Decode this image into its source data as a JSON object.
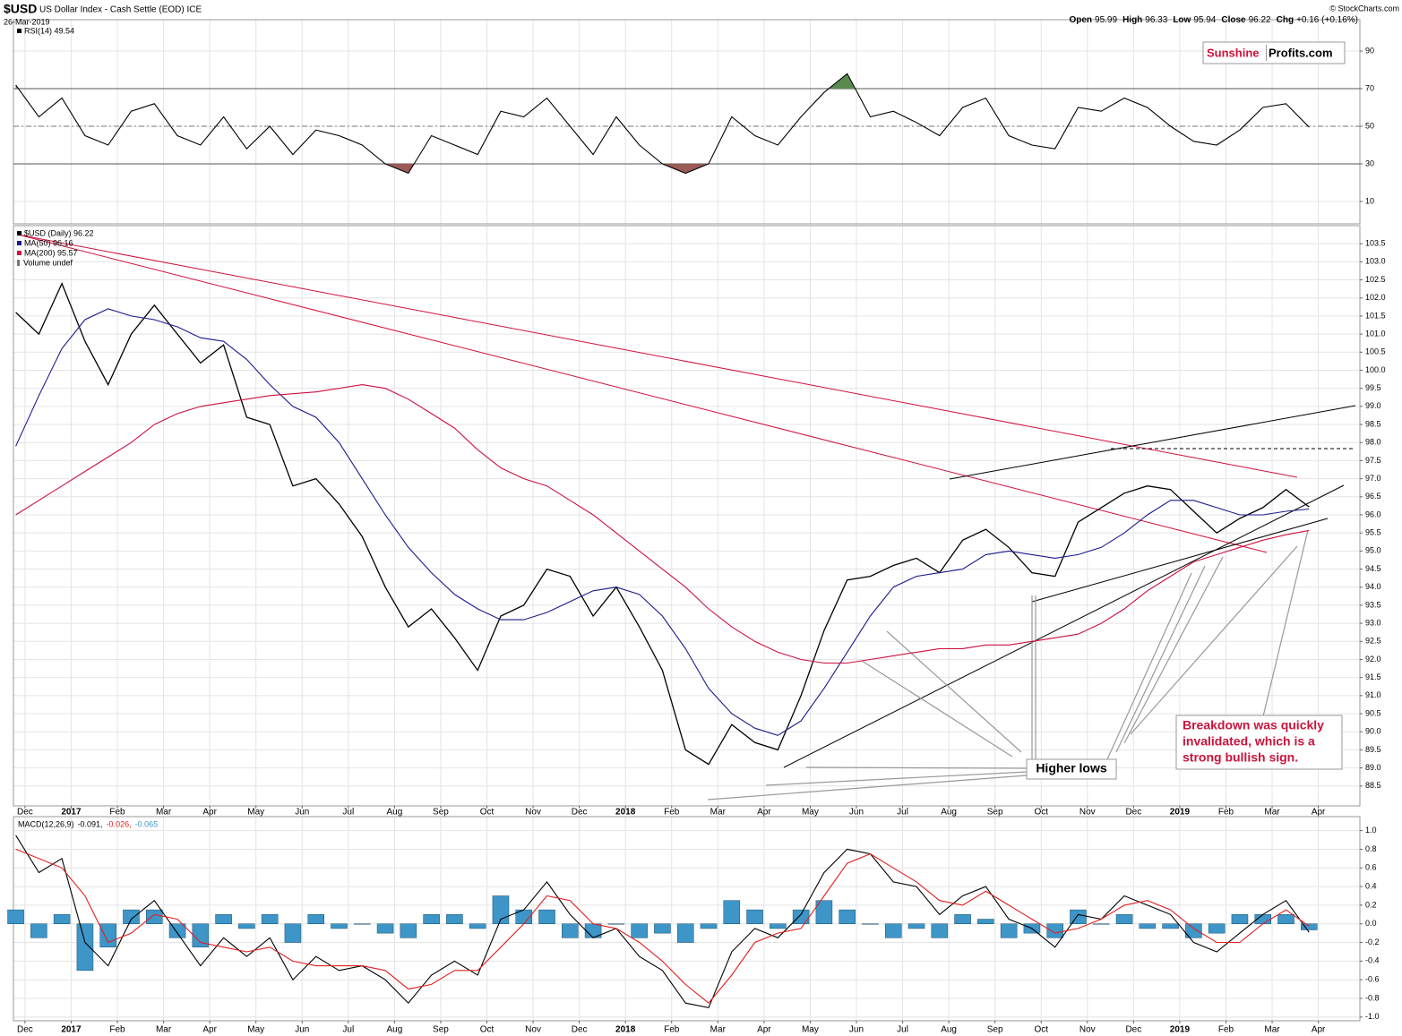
{
  "header": {
    "symbol": "$USD",
    "name": "US Dollar Index - Cash Settle (EOD) ICE",
    "date": "26-Mar-2019",
    "quote": [
      {
        "label": "Open",
        "value": "95.99"
      },
      {
        "label": "High",
        "value": "96.33"
      },
      {
        "label": "Low",
        "value": "95.94"
      },
      {
        "label": "Close",
        "value": "96.22"
      },
      {
        "label": "Chg",
        "value": "+0.16 (+0.16%)"
      }
    ],
    "credit": "© StockCharts.com",
    "logo": [
      "Sunshine",
      "Profits.com"
    ]
  },
  "annotations": {
    "higher_lows": "Higher lows",
    "breakdown": [
      "Breakdown was quickly",
      "invalidated, which is a",
      "strong bullish sign."
    ],
    "volume": "Volume undef"
  },
  "chart_data": [
    {
      "type": "line",
      "xlim": [
        -0.25,
        28.9
      ],
      "ylim": [
        -1.9,
        106.7
      ],
      "yticks": [
        10,
        30,
        50,
        70,
        90
      ],
      "levels": [
        30,
        70
      ],
      "midline": 50,
      "overbought_color": "#5a8a50",
      "oversold_color": "#9a5a55",
      "grid": true,
      "x": [
        -0.2,
        0.3,
        0.8,
        1.3,
        1.8,
        2.3,
        2.8,
        3.3,
        3.8,
        4.3,
        4.8,
        5.3,
        5.8,
        6.3,
        6.8,
        7.3,
        7.8,
        8.3,
        8.8,
        9.3,
        9.8,
        10.3,
        10.8,
        11.3,
        11.8,
        12.3,
        12.8,
        13.3,
        13.8,
        14.3,
        14.8,
        15.3,
        15.8,
        16.3,
        16.8,
        17.3,
        17.8,
        18.3,
        18.8,
        19.3,
        19.8,
        20.3,
        20.8,
        21.3,
        21.8,
        22.3,
        22.8,
        23.3,
        23.8,
        24.3,
        24.8,
        25.3,
        25.8,
        26.3,
        26.8,
        27.3,
        27.8
      ],
      "series": [
        {
          "name": "RSI(14) 49.54",
          "color": "#000000",
          "values": [
            72,
            55,
            65,
            45,
            40,
            58,
            62,
            45,
            40,
            55,
            38,
            50,
            35,
            48,
            45,
            40,
            30,
            25,
            45,
            40,
            35,
            58,
            55,
            65,
            50,
            35,
            55,
            40,
            30,
            25,
            30,
            55,
            45,
            40,
            55,
            68,
            78,
            55,
            58,
            52,
            45,
            60,
            65,
            45,
            40,
            38,
            60,
            58,
            65,
            60,
            50,
            42,
            40,
            48,
            60,
            62,
            49.54
          ]
        }
      ]
    },
    {
      "type": "line",
      "xlim": [
        -0.25,
        28.9
      ],
      "ylim": [
        87.95,
        104.0
      ],
      "yticks": [
        88.5,
        {
          "value": 89,
          "label": "89.0"
        },
        89.5,
        {
          "value": 90,
          "label": "90.0"
        },
        90.5,
        {
          "value": 91,
          "label": "91.0"
        },
        91.5,
        {
          "value": 92,
          "label": "92.0"
        },
        92.5,
        {
          "value": 93,
          "label": "93.0"
        },
        93.5,
        {
          "value": 94,
          "label": "94.0"
        },
        94.5,
        {
          "value": 95,
          "label": "95.0"
        },
        95.5,
        {
          "value": 96,
          "label": "96.0"
        },
        96.5,
        {
          "value": 97,
          "label": "97.0"
        },
        97.5,
        {
          "value": 98,
          "label": "98.0"
        },
        98.5,
        {
          "value": 99,
          "label": "99.0"
        },
        99.5,
        {
          "value": 100,
          "label": "100.0"
        },
        100.5,
        {
          "value": 101,
          "label": "101.0"
        },
        101.5,
        {
          "value": 102,
          "label": "102.0"
        },
        102.5,
        {
          "value": 103,
          "label": "103.0"
        },
        103.5
      ],
      "xticks": [
        {
          "value": 0,
          "label": "Dec"
        },
        {
          "value": 1,
          "label": "2017"
        },
        {
          "value": 2,
          "label": "Feb"
        },
        {
          "value": 3,
          "label": "Mar"
        },
        {
          "value": 4,
          "label": "Apr"
        },
        {
          "value": 5,
          "label": "May"
        },
        {
          "value": 6,
          "label": "Jun"
        },
        {
          "value": 7,
          "label": "Jul"
        },
        {
          "value": 8,
          "label": "Aug"
        },
        {
          "value": 9,
          "label": "Sep"
        },
        {
          "value": 10,
          "label": "Oct"
        },
        {
          "value": 11,
          "label": "Nov"
        },
        {
          "value": 12,
          "label": "Dec"
        },
        {
          "value": 13,
          "label": "2018"
        },
        {
          "value": 14,
          "label": "Feb"
        },
        {
          "value": 15,
          "label": "Mar"
        },
        {
          "value": 16,
          "label": "Apr"
        },
        {
          "value": 17,
          "label": "May"
        },
        {
          "value": 18,
          "label": "Jun"
        },
        {
          "value": 19,
          "label": "Jul"
        },
        {
          "value": 20,
          "label": "Aug"
        },
        {
          "value": 21,
          "label": "Sep"
        },
        {
          "value": 22,
          "label": "Oct"
        },
        {
          "value": 23,
          "label": "Nov"
        },
        {
          "value": 24,
          "label": "Dec"
        },
        {
          "value": 25,
          "label": "2019"
        },
        {
          "value": 26,
          "label": "Feb"
        },
        {
          "value": 27,
          "label": "Mar"
        },
        {
          "value": 28,
          "label": "Apr"
        }
      ],
      "grid": true,
      "x": [
        -0.2,
        0.3,
        0.8,
        1.3,
        1.8,
        2.3,
        2.8,
        3.3,
        3.8,
        4.3,
        4.8,
        5.3,
        5.8,
        6.3,
        6.8,
        7.3,
        7.8,
        8.3,
        8.8,
        9.3,
        9.8,
        10.3,
        10.8,
        11.3,
        11.8,
        12.3,
        12.8,
        13.3,
        13.8,
        14.3,
        14.8,
        15.3,
        15.8,
        16.3,
        16.8,
        17.3,
        17.8,
        18.3,
        18.8,
        19.3,
        19.8,
        20.3,
        20.8,
        21.3,
        21.8,
        22.3,
        22.8,
        23.3,
        23.8,
        24.3,
        24.8,
        25.3,
        25.8,
        26.3,
        26.8,
        27.3,
        27.8
      ],
      "series": [
        {
          "name": "$USD (Daily) 96.22",
          "color": "#000000",
          "values": [
            101.6,
            101.0,
            102.4,
            100.8,
            99.6,
            101.0,
            101.8,
            101.0,
            100.2,
            100.7,
            98.7,
            98.5,
            96.8,
            97.0,
            96.3,
            95.4,
            94.0,
            92.9,
            93.4,
            92.6,
            91.7,
            93.2,
            93.5,
            94.5,
            94.3,
            93.2,
            94.0,
            92.9,
            91.7,
            89.5,
            89.1,
            90.2,
            89.7,
            89.5,
            91.0,
            92.8,
            94.2,
            94.3,
            94.6,
            94.8,
            94.4,
            95.3,
            95.6,
            95.1,
            94.4,
            94.3,
            95.8,
            96.2,
            96.6,
            96.8,
            96.7,
            96.1,
            95.5,
            95.9,
            96.2,
            96.7,
            96.22
          ]
        },
        {
          "name": "MA(50) 96.16",
          "color": "#1a1a8c",
          "values": [
            97.9,
            99.3,
            100.6,
            101.4,
            101.7,
            101.5,
            101.4,
            101.2,
            100.9,
            100.8,
            100.3,
            99.6,
            99.0,
            98.7,
            98.0,
            97.0,
            96.0,
            95.1,
            94.4,
            93.8,
            93.4,
            93.1,
            93.1,
            93.3,
            93.6,
            93.9,
            94.0,
            93.8,
            93.2,
            92.3,
            91.2,
            90.5,
            90.1,
            89.9,
            90.3,
            91.2,
            92.2,
            93.2,
            94.0,
            94.3,
            94.4,
            94.5,
            94.9,
            95.0,
            94.9,
            94.8,
            94.9,
            95.1,
            95.5,
            96.0,
            96.4,
            96.4,
            96.2,
            96.0,
            96.0,
            96.1,
            96.16
          ]
        },
        {
          "name": "MA(200) 95.57",
          "color": "#cc1040",
          "values": [
            96.0,
            96.4,
            96.8,
            97.2,
            97.6,
            98.0,
            98.5,
            98.8,
            99.0,
            99.1,
            99.2,
            99.3,
            99.35,
            99.4,
            99.5,
            99.6,
            99.5,
            99.2,
            98.8,
            98.4,
            97.8,
            97.3,
            97.0,
            96.8,
            96.4,
            96.0,
            95.5,
            95.0,
            94.5,
            94.0,
            93.4,
            92.9,
            92.5,
            92.2,
            92.0,
            91.9,
            91.9,
            92.0,
            92.1,
            92.2,
            92.3,
            92.3,
            92.4,
            92.4,
            92.5,
            92.6,
            92.7,
            93.0,
            93.4,
            93.9,
            94.3,
            94.7,
            94.9,
            95.1,
            95.3,
            95.45,
            95.57
          ]
        }
      ]
    },
    {
      "type": "line",
      "title": "MACD(12,26,9)",
      "xlim": [
        -0.25,
        28.9
      ],
      "ylim": [
        -1.04,
        1.15
      ],
      "yticks": [
        {
          "value": -1,
          "label": "-1.0"
        },
        -0.8,
        -0.6,
        -0.4,
        -0.2,
        {
          "value": 0,
          "label": "0.0"
        },
        0.2,
        0.4,
        0.6,
        0.8,
        {
          "value": 1,
          "label": "1.0"
        }
      ],
      "xticks": [
        {
          "value": 0,
          "label": "Dec"
        },
        {
          "value": 1,
          "label": "2017"
        },
        {
          "value": 2,
          "label": "Feb"
        },
        {
          "value": 3,
          "label": "Mar"
        },
        {
          "value": 4,
          "label": "Apr"
        },
        {
          "value": 5,
          "label": "May"
        },
        {
          "value": 6,
          "label": "Jun"
        },
        {
          "value": 7,
          "label": "Jul"
        },
        {
          "value": 8,
          "label": "Aug"
        },
        {
          "value": 9,
          "label": "Sep"
        },
        {
          "value": 10,
          "label": "Oct"
        },
        {
          "value": 11,
          "label": "Nov"
        },
        {
          "value": 12,
          "label": "Dec"
        },
        {
          "value": 13,
          "label": "2018"
        },
        {
          "value": 14,
          "label": "Feb"
        },
        {
          "value": 15,
          "label": "Mar"
        },
        {
          "value": 16,
          "label": "Apr"
        },
        {
          "value": 17,
          "label": "May"
        },
        {
          "value": 18,
          "label": "Jun"
        },
        {
          "value": 19,
          "label": "Jul"
        },
        {
          "value": 20,
          "label": "Aug"
        },
        {
          "value": 21,
          "label": "Sep"
        },
        {
          "value": 22,
          "label": "Oct"
        },
        {
          "value": 23,
          "label": "Nov"
        },
        {
          "value": 24,
          "label": "Dec"
        },
        {
          "value": 25,
          "label": "2019"
        },
        {
          "value": 26,
          "label": "Feb"
        },
        {
          "value": 27,
          "label": "Mar"
        },
        {
          "value": 28,
          "label": "Apr"
        }
      ],
      "grid": true,
      "x": [
        -0.2,
        0.3,
        0.8,
        1.3,
        1.8,
        2.3,
        2.8,
        3.3,
        3.8,
        4.3,
        4.8,
        5.3,
        5.8,
        6.3,
        6.8,
        7.3,
        7.8,
        8.3,
        8.8,
        9.3,
        9.8,
        10.3,
        10.8,
        11.3,
        11.8,
        12.3,
        12.8,
        13.3,
        13.8,
        14.3,
        14.8,
        15.3,
        15.8,
        16.3,
        16.8,
        17.3,
        17.8,
        18.3,
        18.8,
        19.3,
        19.8,
        20.3,
        20.8,
        21.3,
        21.8,
        22.3,
        22.8,
        23.3,
        23.8,
        24.3,
        24.8,
        25.3,
        25.8,
        26.3,
        26.8,
        27.3,
        27.8
      ],
      "series": [
        {
          "name": "-0.065",
          "color": "#3d95c8",
          "mark": "bar",
          "values": [
            0.15,
            -0.15,
            0.1,
            -0.5,
            -0.25,
            0.15,
            0.15,
            -0.15,
            -0.25,
            0.1,
            -0.05,
            0.1,
            -0.2,
            0.1,
            -0.05,
            0,
            -0.1,
            -0.15,
            0.1,
            0.1,
            -0.05,
            0.3,
            0.15,
            0.15,
            -0.15,
            -0.15,
            0,
            -0.15,
            -0.1,
            -0.2,
            -0.05,
            0.25,
            0.15,
            -0.05,
            0.15,
            0.25,
            0.15,
            0,
            -0.15,
            -0.05,
            -0.15,
            0.1,
            0.05,
            -0.15,
            -0.1,
            -0.15,
            0.15,
            0,
            0.1,
            -0.05,
            -0.05,
            -0.15,
            -0.1,
            0.1,
            0.1,
            0.1,
            -0.065
          ]
        },
        {
          "name": "-0.091,",
          "color": "#000000",
          "values": [
            0.95,
            0.55,
            0.7,
            -0.2,
            -0.45,
            0.05,
            0.25,
            -0.1,
            -0.45,
            -0.15,
            -0.35,
            -0.15,
            -0.6,
            -0.35,
            -0.5,
            -0.45,
            -0.6,
            -0.85,
            -0.55,
            -0.4,
            -0.55,
            0.05,
            0.15,
            0.45,
            0.1,
            -0.15,
            -0.05,
            -0.35,
            -0.5,
            -0.85,
            -0.9,
            -0.3,
            -0.05,
            -0.15,
            0.1,
            0.55,
            0.8,
            0.75,
            0.45,
            0.4,
            0.1,
            0.3,
            0.4,
            0.05,
            -0.05,
            -0.25,
            0.1,
            0.05,
            0.3,
            0.2,
            0.1,
            -0.2,
            -0.3,
            -0.1,
            0.1,
            0.25,
            -0.091
          ]
        },
        {
          "name": "-0.026,",
          "color": "#e02020",
          "values": [
            0.8,
            0.7,
            0.6,
            0.3,
            -0.2,
            -0.1,
            0.1,
            0.05,
            -0.2,
            -0.25,
            -0.3,
            -0.25,
            -0.4,
            -0.45,
            -0.45,
            -0.45,
            -0.5,
            -0.7,
            -0.65,
            -0.5,
            -0.5,
            -0.25,
            0,
            0.3,
            0.25,
            0,
            -0.05,
            -0.2,
            -0.4,
            -0.65,
            -0.85,
            -0.55,
            -0.2,
            -0.1,
            -0.05,
            0.3,
            0.65,
            0.75,
            0.6,
            0.45,
            0.25,
            0.2,
            0.35,
            0.2,
            0.05,
            -0.1,
            -0.05,
            0.05,
            0.2,
            0.25,
            0.15,
            -0.05,
            -0.2,
            -0.2,
            0,
            0.15,
            -0.026
          ]
        }
      ]
    }
  ]
}
